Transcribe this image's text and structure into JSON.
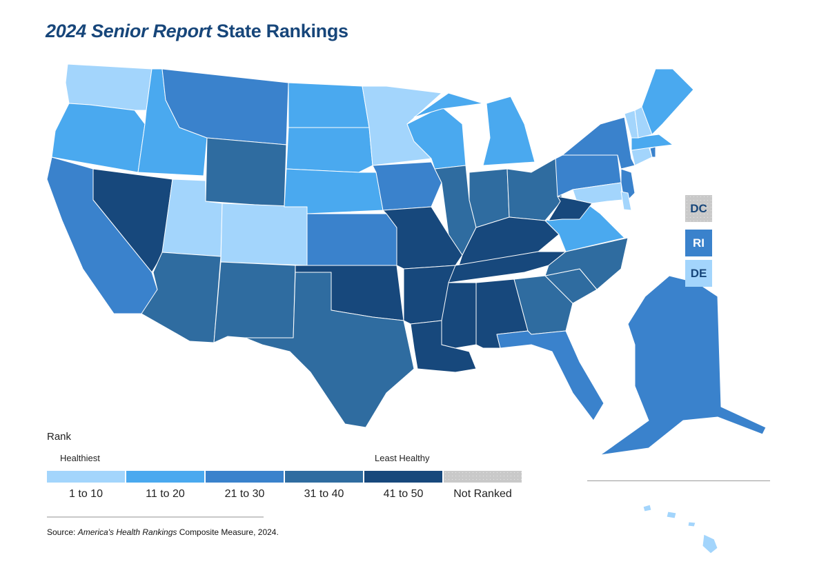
{
  "title": {
    "italic_part": "2024 Senior Report",
    "regular_part": "State Rankings"
  },
  "legend": {
    "title": "Rank",
    "low_end": "Healthiest",
    "high_end": "Least Healthy",
    "bins": [
      {
        "label": "1 to 10",
        "color": "#a3d5fc"
      },
      {
        "label": "11 to 20",
        "color": "#4aa9ef"
      },
      {
        "label": "21 to 30",
        "color": "#3a82cc"
      },
      {
        "label": "31 to 40",
        "color": "#2f6ca0"
      },
      {
        "label": "41 to 50",
        "color": "#17487c"
      },
      {
        "label": "Not Ranked",
        "color": "#c9c9c9"
      }
    ]
  },
  "insets": [
    {
      "label": "DC",
      "bin": 5
    },
    {
      "label": "RI",
      "bin": 2
    },
    {
      "label": "DE",
      "bin": 0
    }
  ],
  "source": {
    "prefix": "Source: ",
    "italic": "America's Health Rankings",
    "suffix": " Composite Measure, 2024."
  },
  "map_data": {
    "type": "choropleth",
    "state_bins": {
      "WA": 0,
      "UT": 0,
      "CO": 0,
      "MN": 0,
      "VT": 0,
      "NH": 0,
      "CT": 0,
      "MD": 0,
      "DE": 0,
      "HI": 0,
      "OR": 1,
      "ID": 1,
      "ND": 1,
      "SD": 1,
      "NE": 1,
      "WI": 1,
      "MI": 1,
      "ME": 1,
      "MA": 1,
      "VA": 1,
      "MT": 2,
      "CA": 2,
      "KS": 2,
      "IA": 2,
      "NY": 2,
      "PA": 2,
      "NJ": 2,
      "RI": 2,
      "FL": 2,
      "AK": 2,
      "WY": 3,
      "AZ": 3,
      "NM": 3,
      "TX": 3,
      "IL": 3,
      "IN": 3,
      "OH": 3,
      "NC": 3,
      "SC": 3,
      "GA": 3,
      "NV": 4,
      "OK": 4,
      "MO": 4,
      "AR": 4,
      "LA": 4,
      "MS": 4,
      "AL": 4,
      "TN": 4,
      "KY": 4,
      "WV": 4
    }
  }
}
